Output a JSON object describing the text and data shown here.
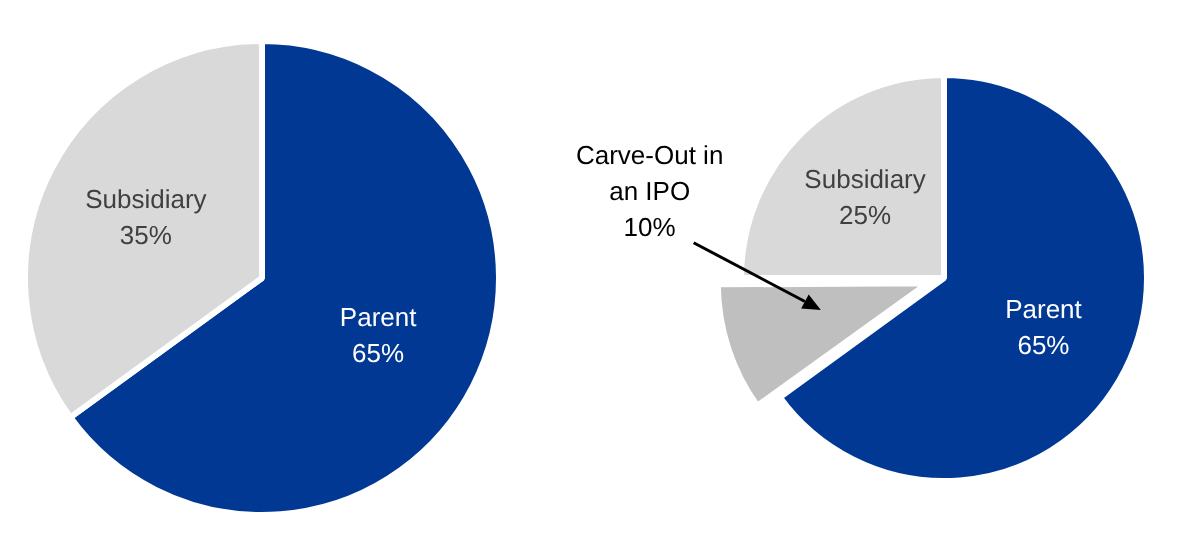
{
  "chart_data": [
    {
      "type": "pie",
      "categories": [
        "Parent",
        "Subsidiary"
      ],
      "values": [
        65,
        35
      ],
      "colors": [
        "#003893",
        "#d9d9d9"
      ],
      "value_labels": [
        "65%",
        "35%"
      ]
    },
    {
      "type": "pie",
      "categories": [
        "Parent",
        "Carve-Out in an IPO",
        "Subsidiary"
      ],
      "values": [
        65,
        10,
        25
      ],
      "colors": [
        "#003893",
        "#bfbfbf",
        "#d9d9d9"
      ],
      "value_labels": [
        "65%",
        "10%",
        "25%"
      ]
    }
  ]
}
